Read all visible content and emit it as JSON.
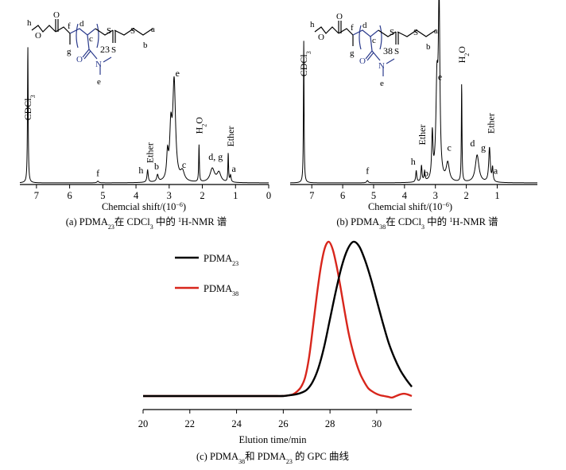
{
  "chart_data": [
    {
      "type": "line",
      "panel": "a",
      "caption": {
        "pre": "(a) PDMA",
        "sub1": "23",
        "mid": "在 CDCl",
        "sub2": "3",
        "mid2": " 中的 ",
        "sup": "1",
        "post": "H-NMR 谱"
      },
      "xlabel": {
        "pre": "Chemcial shift/(10",
        "sup": "−6",
        "post": ")"
      },
      "xlim": [
        7.5,
        0
      ],
      "x_ticks": [
        7,
        6,
        5,
        4,
        3,
        2,
        1,
        0
      ],
      "x_tick_labels": [
        "7",
        "6",
        "5",
        "4",
        "3",
        "2",
        "1",
        "0"
      ],
      "peaks": [
        {
          "x": 7.26,
          "h": 1.0,
          "w": 0.012
        },
        {
          "x": 5.15,
          "h": 0.012,
          "w": 0.03
        },
        {
          "x": 3.65,
          "h": 0.09,
          "w": 0.022
        },
        {
          "x": 3.35,
          "h": 0.05,
          "w": 0.03
        },
        {
          "x": 3.05,
          "h": 0.18,
          "w": 0.03
        },
        {
          "x": 2.95,
          "h": 0.35,
          "w": 0.04
        },
        {
          "x": 2.85,
          "h": 0.72,
          "w": 0.05
        },
        {
          "x": 2.6,
          "h": 0.07,
          "w": 0.07
        },
        {
          "x": 2.1,
          "h": 0.27,
          "w": 0.012
        },
        {
          "x": 1.7,
          "h": 0.1,
          "w": 0.08
        },
        {
          "x": 1.5,
          "h": 0.07,
          "w": 0.07
        },
        {
          "x": 1.22,
          "h": 0.21,
          "w": 0.012
        },
        {
          "x": 1.15,
          "h": 0.05,
          "w": 0.02
        }
      ],
      "labels": [
        {
          "text": "CDCl",
          "sub": "3",
          "x": 7.26,
          "y": 0.55,
          "vertical": true
        },
        {
          "text": "f",
          "x": 5.15,
          "y": 0.05
        },
        {
          "text": "h",
          "x": 3.85,
          "y": 0.07
        },
        {
          "text": "Ether",
          "x": 3.58,
          "y": 0.22,
          "vertical": true
        },
        {
          "text": "b",
          "x": 3.38,
          "y": 0.1
        },
        {
          "text": "e",
          "x": 2.75,
          "y": 0.78
        },
        {
          "text": "c",
          "x": 2.55,
          "y": 0.11
        },
        {
          "text": "H",
          "sub": "2",
          "post": "O",
          "x": 2.1,
          "y": 0.42,
          "vertical": true
        },
        {
          "text": "d, g",
          "x": 1.6,
          "y": 0.17
        },
        {
          "text": "Ether",
          "x": 1.15,
          "y": 0.34,
          "vertical": true
        },
        {
          "text": "a",
          "x": 1.05,
          "y": 0.08
        }
      ],
      "structure_dp": "23",
      "structure_letters": [
        "h",
        "f",
        "g",
        "d",
        "c",
        "a",
        "b",
        "e"
      ],
      "structure_atoms": [
        "O",
        "S",
        "S",
        "S",
        "N"
      ]
    },
    {
      "type": "line",
      "panel": "b",
      "caption": {
        "pre": "(b) PDMA",
        "sub1": "38",
        "mid": "在 CDCl",
        "sub2": "3",
        "mid2": " 中的 ",
        "sup": "1",
        "post": "H-NMR 谱"
      },
      "xlabel": {
        "pre": "Chemcial shift/(10",
        "sup": "−6",
        "post": ")"
      },
      "xlim": [
        7.7,
        -0.3
      ],
      "x_ticks": [
        7,
        6,
        5,
        4,
        3,
        2,
        1
      ],
      "x_tick_labels": [
        "7",
        "6",
        "5",
        "4",
        "3",
        "2",
        "1"
      ],
      "peaks": [
        {
          "x": 7.26,
          "h": 0.62,
          "w": 0.012
        },
        {
          "x": 5.2,
          "h": 0.01,
          "w": 0.03
        },
        {
          "x": 3.62,
          "h": 0.05,
          "w": 0.02
        },
        {
          "x": 3.45,
          "h": 0.07,
          "w": 0.02
        },
        {
          "x": 3.35,
          "h": 0.04,
          "w": 0.02
        },
        {
          "x": 3.1,
          "h": 0.2,
          "w": 0.025
        },
        {
          "x": 2.95,
          "h": 0.4,
          "w": 0.04
        },
        {
          "x": 2.88,
          "h": 0.75,
          "w": 0.03
        },
        {
          "x": 2.6,
          "h": 0.08,
          "w": 0.06
        },
        {
          "x": 2.15,
          "h": 0.43,
          "w": 0.012
        },
        {
          "x": 1.65,
          "h": 0.12,
          "w": 0.07
        },
        {
          "x": 1.25,
          "h": 0.15,
          "w": 0.03
        },
        {
          "x": 1.15,
          "h": 0.06,
          "w": 0.02
        }
      ],
      "labels": [
        {
          "text": "CDCl",
          "sub": "3",
          "x": 7.26,
          "y": 0.52,
          "vertical": true
        },
        {
          "text": "f",
          "x": 5.2,
          "y": 0.04
        },
        {
          "text": "h",
          "x": 3.72,
          "y": 0.08
        },
        {
          "text": "Ether",
          "x": 3.43,
          "y": 0.21,
          "vertical": true
        },
        {
          "text": "b",
          "x": 3.3,
          "y": 0.03
        },
        {
          "text": "e",
          "x": 2.85,
          "y": 0.45
        },
        {
          "text": "c",
          "x": 2.55,
          "y": 0.14
        },
        {
          "text": "H",
          "sub": "2",
          "post": "O",
          "x": 2.15,
          "y": 0.56,
          "vertical": true
        },
        {
          "text": "d",
          "x": 1.8,
          "y": 0.16
        },
        {
          "text": "g",
          "x": 1.45,
          "y": 0.14
        },
        {
          "text": "Ether",
          "x": 1.2,
          "y": 0.26,
          "vertical": true
        },
        {
          "text": "a",
          "x": 1.05,
          "y": 0.04
        }
      ],
      "structure_dp": "38",
      "structure_letters": [
        "h",
        "f",
        "g",
        "d",
        "c",
        "a",
        "b",
        "e"
      ],
      "structure_atoms": [
        "O",
        "S",
        "S",
        "S",
        "N"
      ]
    },
    {
      "type": "line",
      "panel": "c",
      "caption": {
        "pre": "(c) PDMA",
        "sub1": "38",
        "mid": "和 PDMA",
        "sub2": "23",
        "post": " 的 GPC 曲线"
      },
      "xlabel": "Elution time/min",
      "xlim": [
        20,
        31.5
      ],
      "x_ticks": [
        20,
        22,
        24,
        26,
        28,
        30
      ],
      "x_tick_labels": [
        "20",
        "22",
        "24",
        "26",
        "28",
        "30"
      ],
      "legend": "top-left",
      "series": [
        {
          "name": "PDMA",
          "sub": "23",
          "color": "#000000",
          "x0": 25.5,
          "x1": 31.5,
          "y": [
            0,
            0,
            0,
            0.005,
            0.01,
            0.02,
            0.04,
            0.09,
            0.18,
            0.32,
            0.5,
            0.68,
            0.84,
            0.95,
            1.0,
            0.97,
            0.88,
            0.76,
            0.62,
            0.48,
            0.35,
            0.25,
            0.17,
            0.11,
            0.06
          ]
        },
        {
          "name": "PDMA",
          "sub": "38",
          "color": "#d8261c",
          "x0": 20,
          "x1": 31.5,
          "y": [
            0,
            0,
            0,
            0,
            0,
            0,
            0,
            0,
            0,
            0,
            0,
            0,
            0,
            0,
            0,
            0,
            0,
            0,
            0,
            0,
            0,
            0,
            0,
            0,
            0,
            0,
            0,
            0,
            0,
            0,
            0,
            0,
            0,
            0,
            0,
            0,
            0.002,
            0.005,
            0.012,
            0.03,
            0.06,
            0.12,
            0.25,
            0.45,
            0.66,
            0.84,
            0.96,
            1.0,
            0.95,
            0.84,
            0.7,
            0.55,
            0.41,
            0.3,
            0.21,
            0.14,
            0.09,
            0.05,
            0.03,
            0.015,
            0.005,
            0.0,
            -0.005,
            -0.01,
            0.0,
            0.01,
            0.015,
            0.01,
            0.0
          ]
        }
      ]
    }
  ]
}
